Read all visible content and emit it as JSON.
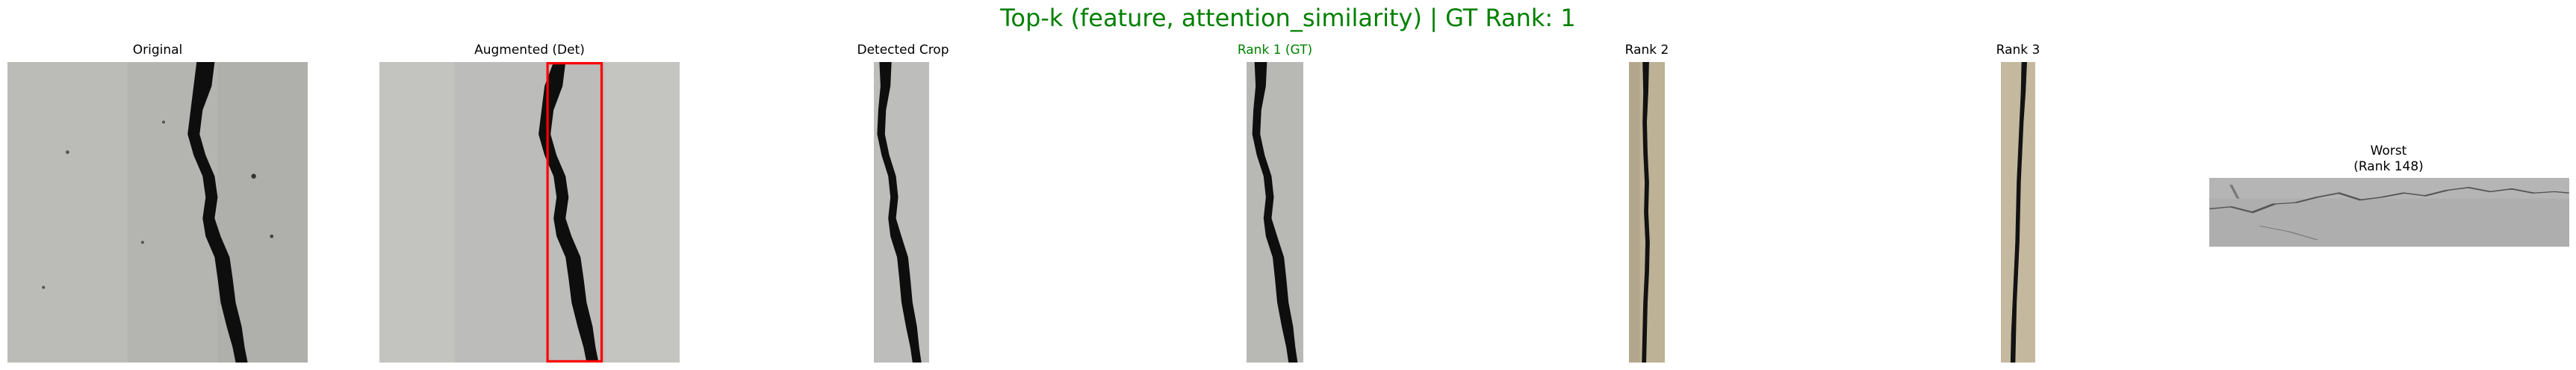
{
  "figure": {
    "title": "Top-k (feature, attention_similarity) | GT Rank: 1",
    "title_color": "#008000"
  },
  "panels": [
    {
      "title": "Original"
    },
    {
      "title": "Augmented (Det)",
      "box_color": "#ff0000"
    },
    {
      "title": "Detected Crop"
    },
    {
      "title": "Rank 1 (GT)",
      "title_color": "#008000"
    },
    {
      "title": "Rank 2"
    },
    {
      "title": "Rank 3"
    },
    {
      "title": "Worst\n(Rank 148)"
    }
  ]
}
